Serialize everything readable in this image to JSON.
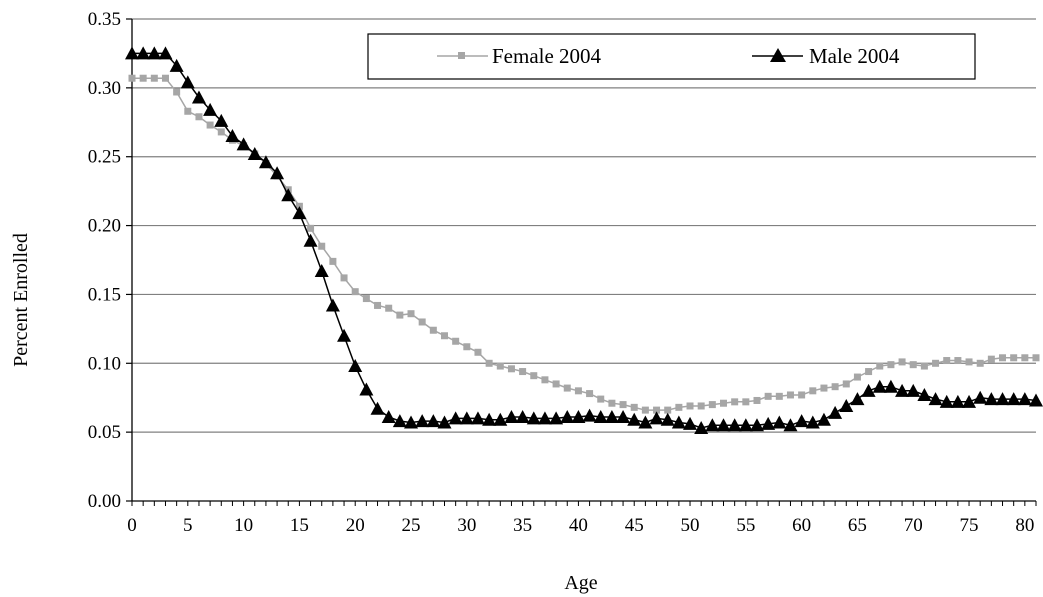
{
  "chart_data": {
    "type": "line",
    "xlabel": "Age",
    "ylabel": "Percent Enrolled",
    "xlim": [
      0,
      81
    ],
    "ylim": [
      0,
      0.35
    ],
    "x_ticks": [
      "0",
      "5",
      "10",
      "15",
      "20",
      "25",
      "30",
      "35",
      "40",
      "45",
      "50",
      "55",
      "60",
      "65",
      "70",
      "75",
      "80"
    ],
    "y_ticks": [
      "0.00",
      "0.05",
      "0.10",
      "0.15",
      "0.20",
      "0.25",
      "0.30",
      "0.35"
    ],
    "grid": "horizontal",
    "legend_position": "top-center",
    "x": [
      0,
      1,
      2,
      3,
      4,
      5,
      6,
      7,
      8,
      9,
      10,
      11,
      12,
      13,
      14,
      15,
      16,
      17,
      18,
      19,
      20,
      21,
      22,
      23,
      24,
      25,
      26,
      27,
      28,
      29,
      30,
      31,
      32,
      33,
      34,
      35,
      36,
      37,
      38,
      39,
      40,
      41,
      42,
      43,
      44,
      45,
      46,
      47,
      48,
      49,
      50,
      51,
      52,
      53,
      54,
      55,
      56,
      57,
      58,
      59,
      60,
      61,
      62,
      63,
      64,
      65,
      66,
      67,
      68,
      69,
      70,
      71,
      72,
      73,
      74,
      75,
      76,
      77,
      78,
      79,
      80,
      81
    ],
    "series": [
      {
        "name": "Female 2004",
        "color": "#a6a6a6",
        "marker": "square",
        "values": [
          0.307,
          0.307,
          0.307,
          0.307,
          0.297,
          0.283,
          0.279,
          0.273,
          0.268,
          0.262,
          0.258,
          0.252,
          0.245,
          0.236,
          0.226,
          0.214,
          0.198,
          0.185,
          0.174,
          0.162,
          0.152,
          0.147,
          0.142,
          0.14,
          0.135,
          0.136,
          0.13,
          0.124,
          0.12,
          0.116,
          0.112,
          0.108,
          0.1,
          0.098,
          0.096,
          0.094,
          0.091,
          0.088,
          0.085,
          0.082,
          0.08,
          0.078,
          0.074,
          0.071,
          0.07,
          0.068,
          0.066,
          0.066,
          0.066,
          0.068,
          0.069,
          0.069,
          0.07,
          0.071,
          0.072,
          0.072,
          0.073,
          0.076,
          0.076,
          0.077,
          0.077,
          0.08,
          0.082,
          0.083,
          0.085,
          0.09,
          0.094,
          0.098,
          0.099,
          0.101,
          0.099,
          0.098,
          0.1,
          0.102,
          0.102,
          0.101,
          0.1,
          0.103,
          0.104,
          0.104,
          0.104,
          0.104
        ]
      },
      {
        "name": "Male 2004",
        "color": "#000000",
        "marker": "triangle",
        "values": [
          0.325,
          0.325,
          0.325,
          0.325,
          0.316,
          0.304,
          0.293,
          0.284,
          0.276,
          0.265,
          0.259,
          0.252,
          0.246,
          0.238,
          0.222,
          0.209,
          0.189,
          0.167,
          0.142,
          0.12,
          0.098,
          0.081,
          0.067,
          0.061,
          0.058,
          0.057,
          0.058,
          0.058,
          0.057,
          0.06,
          0.06,
          0.06,
          0.059,
          0.059,
          0.061,
          0.061,
          0.06,
          0.06,
          0.06,
          0.061,
          0.061,
          0.062,
          0.061,
          0.061,
          0.061,
          0.059,
          0.057,
          0.06,
          0.059,
          0.057,
          0.056,
          0.053,
          0.055,
          0.055,
          0.055,
          0.055,
          0.055,
          0.056,
          0.057,
          0.055,
          0.058,
          0.057,
          0.059,
          0.064,
          0.069,
          0.074,
          0.08,
          0.083,
          0.083,
          0.08,
          0.08,
          0.077,
          0.074,
          0.072,
          0.072,
          0.072,
          0.075,
          0.074,
          0.074,
          0.074,
          0.074,
          0.073
        ]
      }
    ]
  }
}
